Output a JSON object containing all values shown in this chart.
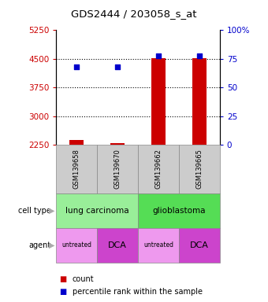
{
  "title": "GDS2444 / 203058_s_at",
  "samples": [
    "GSM139658",
    "GSM139670",
    "GSM139662",
    "GSM139665"
  ],
  "counts": [
    2390,
    2290,
    4510,
    4510
  ],
  "percentile_ranks": [
    68,
    68,
    78,
    78
  ],
  "ylim_left": [
    2250,
    5250
  ],
  "ylim_right": [
    0,
    100
  ],
  "yticks_left": [
    2250,
    3000,
    3750,
    4500,
    5250
  ],
  "yticks_right": [
    0,
    25,
    50,
    75,
    100
  ],
  "bar_color": "#cc0000",
  "dot_color": "#0000cc",
  "cell_type_groups": [
    [
      0,
      2,
      "lung carcinoma"
    ],
    [
      2,
      4,
      "glioblastoma"
    ]
  ],
  "cell_type_colors": {
    "lung carcinoma": "#99ee99",
    "glioblastoma": "#55dd55"
  },
  "agents": [
    "untreated",
    "DCA",
    "untreated",
    "DCA"
  ],
  "agent_colors": {
    "untreated": "#ee99ee",
    "DCA": "#cc44cc"
  },
  "sample_box_color": "#cccccc",
  "left_tick_color": "#cc0000",
  "right_tick_color": "#0000cc",
  "legend_count_color": "#cc0000",
  "legend_pct_color": "#0000cc",
  "grid_dotted_ticks": [
    3000,
    3750,
    4500
  ]
}
